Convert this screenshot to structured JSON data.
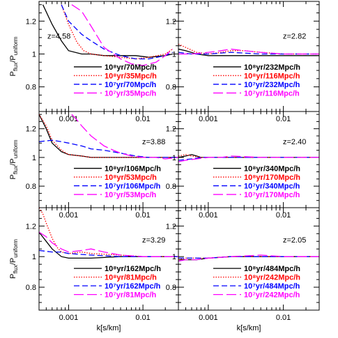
{
  "chart_data": {
    "type": "line",
    "layout": "3x2 panels",
    "xscale": "log",
    "xlim": [
      0.0004,
      0.03
    ],
    "ylim": [
      0.65,
      1.32
    ],
    "xlabel": "k[s/km]",
    "ylabel_main": "P",
    "ylabel_sub1": "flux",
    "ylabel_mid": "/P",
    "ylabel_sub2": "uniform",
    "xticks": [
      0.001,
      0.01
    ],
    "xtick_labels": [
      "0.001",
      "0.01"
    ],
    "yticks": [
      0.8,
      1,
      1.2
    ],
    "ytick_labels": [
      "0.8",
      "1",
      "1.2"
    ],
    "colors": {
      "black": "#000000",
      "red": "#ff0000",
      "blue": "#0000ff",
      "magenta": "#ff00ff"
    },
    "panels": [
      {
        "z": "z=4.58",
        "label_pos": "left",
        "series": [
          {
            "name": "10⁸yr/70Mpc/h",
            "color": "#000000",
            "dash": "solid",
            "x": [
              0.00045,
              0.0006,
              0.0008,
              0.001,
              0.0015,
              0.002,
              0.003,
              0.005,
              0.008,
              0.012,
              0.02,
              0.025
            ],
            "y": [
              1.3,
              1.18,
              1.08,
              1.02,
              1.0,
              1.0,
              0.99,
              0.99,
              0.99,
              0.98,
              0.99,
              1.0
            ]
          },
          {
            "name": "10⁸yr/35Mpc/h",
            "color": "#ff0000",
            "dash": "dot",
            "x": [
              0.0008,
              0.001,
              0.0013,
              0.0016,
              0.002,
              0.003,
              0.005,
              0.008,
              0.012,
              0.02,
              0.025
            ],
            "y": [
              1.3,
              1.18,
              1.07,
              1.02,
              1.0,
              0.99,
              0.98,
              0.97,
              0.98,
              1.0,
              1.03
            ]
          },
          {
            "name": "10⁷yr/70Mpc/h",
            "color": "#0000ff",
            "dash": "dash",
            "x": [
              0.0008,
              0.001,
              0.0015,
              0.002,
              0.003,
              0.005,
              0.008,
              0.012,
              0.02,
              0.025
            ],
            "y": [
              1.3,
              1.2,
              1.12,
              1.08,
              1.03,
              0.99,
              0.97,
              0.97,
              0.99,
              1.01
            ]
          },
          {
            "name": "10⁷yr/35Mpc/h",
            "color": "#ff00ff",
            "dash": "longdash",
            "x": [
              0.0011,
              0.0015,
              0.002,
              0.003,
              0.005,
              0.007,
              0.01,
              0.015,
              0.02,
              0.025
            ],
            "y": [
              1.3,
              1.26,
              1.17,
              1.04,
              0.97,
              0.94,
              0.93,
              0.95,
              0.99,
              1.03
            ]
          }
        ]
      },
      {
        "z": "z=2.82",
        "label_pos": "right",
        "series": [
          {
            "name": "10⁸yr/232Mpc/h",
            "color": "#000000",
            "dash": "solid",
            "x": [
              0.0004,
              0.0005,
              0.0007,
              0.001,
              0.002,
              0.005,
              0.01,
              0.03
            ],
            "y": [
              1.03,
              1.02,
              1.0,
              0.99,
              0.99,
              0.99,
              0.99,
              0.99
            ]
          },
          {
            "name": "10⁸yr/116Mpc/h",
            "color": "#ff0000",
            "dash": "dot",
            "x": [
              0.0004,
              0.0005,
              0.0007,
              0.001,
              0.0015,
              0.002,
              0.003,
              0.005,
              0.01,
              0.03
            ],
            "y": [
              1.06,
              1.04,
              1.01,
              1.0,
              1.01,
              1.02,
              1.02,
              1.01,
              1.0,
              1.0
            ]
          },
          {
            "name": "10⁷yr/232Mpc/h",
            "color": "#0000ff",
            "dash": "dash",
            "x": [
              0.0004,
              0.0006,
              0.001,
              0.002,
              0.005,
              0.01,
              0.03
            ],
            "y": [
              1.01,
              1.0,
              1.0,
              1.01,
              1.0,
              1.0,
              1.0
            ]
          },
          {
            "name": "10⁷yr/116Mpc/h",
            "color": "#ff00ff",
            "dash": "longdash",
            "x": [
              0.0004,
              0.0006,
              0.001,
              0.0015,
              0.002,
              0.003,
              0.005,
              0.01,
              0.03
            ],
            "y": [
              1.0,
              1.0,
              1.01,
              1.02,
              1.03,
              1.02,
              1.01,
              1.0,
              1.0
            ]
          }
        ]
      },
      {
        "z": "z=3.88",
        "label_pos": "right",
        "series": [
          {
            "name": "10⁸yr/106Mpc/h",
            "color": "#000000",
            "dash": "solid",
            "x": [
              0.0004,
              0.0005,
              0.0006,
              0.0008,
              0.001,
              0.0015,
              0.002,
              0.005,
              0.01,
              0.03
            ],
            "y": [
              1.3,
              1.2,
              1.1,
              1.04,
              1.02,
              1.01,
              1.0,
              1.0,
              1.0,
              1.0
            ]
          },
          {
            "name": "10⁸yr/53Mpc/h",
            "color": "#ff0000",
            "dash": "dot",
            "x": [
              0.0004,
              0.0005,
              0.0006,
              0.0008,
              0.001,
              0.0015,
              0.002,
              0.005,
              0.01,
              0.03
            ],
            "y": [
              1.3,
              1.22,
              1.12,
              1.05,
              1.02,
              1.01,
              1.0,
              1.0,
              1.0,
              1.0
            ]
          },
          {
            "name": "10⁷yr/106Mpc/h",
            "color": "#0000ff",
            "dash": "dash",
            "x": [
              0.0004,
              0.0006,
              0.0008,
              0.001,
              0.0015,
              0.002,
              0.003,
              0.005,
              0.008,
              0.012,
              0.02,
              0.03
            ],
            "y": [
              1.11,
              1.12,
              1.11,
              1.1,
              1.08,
              1.06,
              1.05,
              1.03,
              1.01,
              1.0,
              1.0,
              1.0
            ]
          },
          {
            "name": "10⁷yr/53Mpc/h",
            "color": "#ff00ff",
            "dash": "longdash",
            "x": [
              0.0011,
              0.0013,
              0.0015,
              0.002,
              0.003,
              0.004,
              0.005,
              0.007,
              0.01,
              0.015,
              0.02,
              0.03
            ],
            "y": [
              1.3,
              1.26,
              1.22,
              1.15,
              1.08,
              1.05,
              1.03,
              1.01,
              1.0,
              1.0,
              0.99,
              1.0
            ]
          }
        ]
      },
      {
        "z": "z=2.40",
        "label_pos": "right",
        "series": [
          {
            "name": "10⁸yr/340Mpc/h",
            "color": "#000000",
            "dash": "solid",
            "x": [
              0.0004,
              0.0005,
              0.0006,
              0.0007,
              0.0008,
              0.001,
              0.002,
              0.005,
              0.01,
              0.03
            ],
            "y": [
              1.0,
              1.01,
              1.02,
              1.01,
              1.0,
              1.0,
              1.0,
              1.0,
              1.0,
              1.0
            ]
          },
          {
            "name": "10⁸yr/170Mpc/h",
            "color": "#ff0000",
            "dash": "dot",
            "x": [
              0.0004,
              0.0005,
              0.0006,
              0.0008,
              0.001,
              0.002,
              0.005,
              0.01,
              0.03
            ],
            "y": [
              1.01,
              1.02,
              1.01,
              1.0,
              1.0,
              1.0,
              1.0,
              1.0,
              1.0
            ]
          },
          {
            "name": "10⁷yr/340Mpc/h",
            "color": "#0000ff",
            "dash": "dash",
            "x": [
              0.0004,
              0.0006,
              0.0008,
              0.001,
              0.002,
              0.005,
              0.01,
              0.03
            ],
            "y": [
              0.98,
              0.99,
              1.0,
              1.0,
              1.0,
              1.0,
              1.0,
              1.0
            ]
          },
          {
            "name": "10⁷yr/170Mpc/h",
            "color": "#ff00ff",
            "dash": "longdash",
            "x": [
              0.0004,
              0.0005,
              0.0007,
              0.001,
              0.0015,
              0.002,
              0.005,
              0.01,
              0.03
            ],
            "y": [
              0.97,
              0.98,
              0.99,
              1.0,
              1.0,
              1.01,
              1.0,
              1.0,
              1.0
            ]
          }
        ]
      },
      {
        "z": "z=3.29",
        "label_pos": "right",
        "series": [
          {
            "name": "10⁸yr/162Mpc/h",
            "color": "#000000",
            "dash": "solid",
            "x": [
              0.0004,
              0.0005,
              0.0006,
              0.0008,
              0.001,
              0.002,
              0.005,
              0.01,
              0.03
            ],
            "y": [
              1.16,
              1.1,
              1.05,
              1.0,
              0.99,
              0.99,
              1.0,
              1.0,
              1.0
            ]
          },
          {
            "name": "10⁸yr/81Mpc/h",
            "color": "#ff0000",
            "dash": "dot",
            "x": [
              0.0004,
              0.00045,
              0.0005,
              0.0006,
              0.0007,
              0.0008,
              0.001,
              0.0015,
              0.002,
              0.005,
              0.01,
              0.03
            ],
            "y": [
              1.32,
              1.28,
              1.22,
              1.12,
              1.06,
              1.03,
              1.02,
              1.03,
              1.02,
              1.01,
              1.0,
              1.0
            ]
          },
          {
            "name": "10⁷yr/162Mpc/h",
            "color": "#0000ff",
            "dash": "dash",
            "x": [
              0.0004,
              0.0006,
              0.0008,
              0.001,
              0.002,
              0.005,
              0.01,
              0.03
            ],
            "y": [
              1.04,
              1.03,
              1.03,
              1.02,
              1.01,
              1.0,
              1.0,
              1.0
            ]
          },
          {
            "name": "10⁷yr/81Mpc/h",
            "color": "#ff00ff",
            "dash": "longdash",
            "x": [
              0.0004,
              0.0005,
              0.0006,
              0.0008,
              0.001,
              0.0015,
              0.002,
              0.003,
              0.005,
              0.01,
              0.03
            ],
            "y": [
              1.16,
              1.13,
              1.09,
              1.05,
              1.03,
              1.04,
              1.05,
              1.03,
              1.01,
              1.0,
              1.0
            ]
          }
        ]
      },
      {
        "z": "z=2.05",
        "label_pos": "right",
        "series": [
          {
            "name": "10⁸yr/484Mpc/h",
            "color": "#000000",
            "dash": "solid",
            "x": [
              0.0004,
              0.0005,
              0.0007,
              0.001,
              0.002,
              0.005,
              0.01,
              0.03
            ],
            "y": [
              0.98,
              0.98,
              0.98,
              0.99,
              1.0,
              1.0,
              1.0,
              1.0
            ]
          },
          {
            "name": "10⁸yr/242Mpc/h",
            "color": "#ff0000",
            "dash": "dot",
            "x": [
              0.0004,
              0.0005,
              0.0007,
              0.001,
              0.002,
              0.005,
              0.01,
              0.03
            ],
            "y": [
              0.98,
              0.99,
              0.99,
              0.99,
              1.0,
              1.0,
              1.0,
              1.0
            ]
          },
          {
            "name": "10⁷yr/484Mpc/h",
            "color": "#0000ff",
            "dash": "dash",
            "x": [
              0.0004,
              0.0006,
              0.001,
              0.002,
              0.005,
              0.01,
              0.03
            ],
            "y": [
              0.99,
              0.99,
              0.99,
              1.0,
              1.0,
              1.0,
              1.0
            ]
          },
          {
            "name": "10⁷yr/242Mpc/h",
            "color": "#ff00ff",
            "dash": "longdash",
            "x": [
              0.0004,
              0.0005,
              0.0007,
              0.001,
              0.002,
              0.005,
              0.01,
              0.03
            ],
            "y": [
              0.97,
              0.98,
              0.98,
              0.99,
              1.0,
              1.01,
              1.0,
              1.0
            ]
          }
        ]
      }
    ]
  }
}
